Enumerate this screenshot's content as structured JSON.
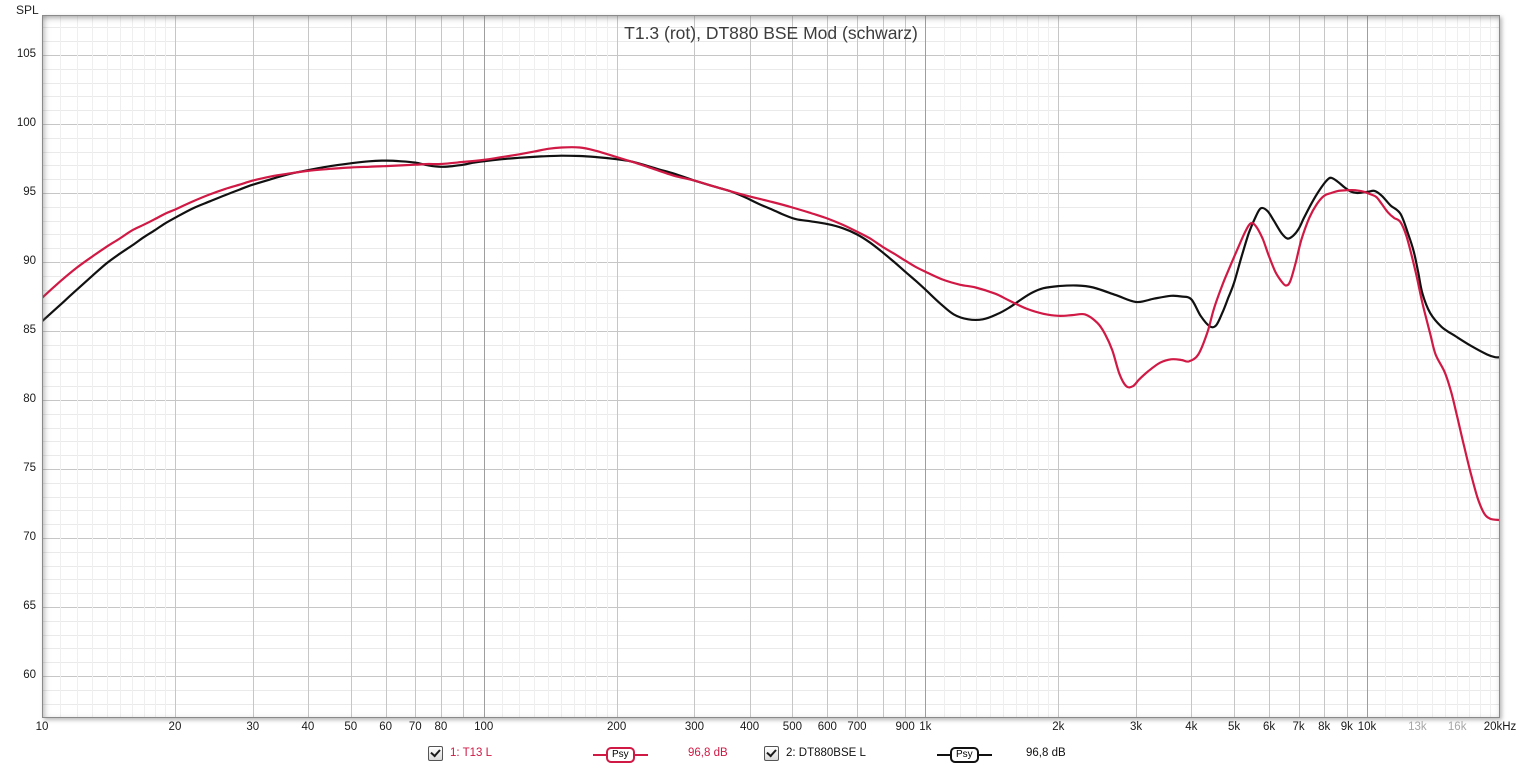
{
  "page": {
    "corner_label": "SPL"
  },
  "chart_data": {
    "type": "line",
    "title": "T1.3 (rot), DT880 BSE Mod (schwarz)",
    "x_axis": {
      "scale": "log",
      "min_hz": 10,
      "max_hz": 20000,
      "ticks": [
        {
          "f": 10,
          "label": "10"
        },
        {
          "f": 20,
          "label": "20"
        },
        {
          "f": 30,
          "label": "30"
        },
        {
          "f": 40,
          "label": "40"
        },
        {
          "f": 50,
          "label": "50"
        },
        {
          "f": 60,
          "label": "60"
        },
        {
          "f": 70,
          "label": "70"
        },
        {
          "f": 80,
          "label": "80"
        },
        {
          "f": 100,
          "label": "100"
        },
        {
          "f": 200,
          "label": "200"
        },
        {
          "f": 300,
          "label": "300"
        },
        {
          "f": 400,
          "label": "400"
        },
        {
          "f": 500,
          "label": "500"
        },
        {
          "f": 600,
          "label": "600"
        },
        {
          "f": 700,
          "label": "700"
        },
        {
          "f": 900,
          "label": "900"
        },
        {
          "f": 1000,
          "label": "1k"
        },
        {
          "f": 2000,
          "label": "2k"
        },
        {
          "f": 3000,
          "label": "3k"
        },
        {
          "f": 4000,
          "label": "4k"
        },
        {
          "f": 5000,
          "label": "5k"
        },
        {
          "f": 6000,
          "label": "6k"
        },
        {
          "f": 7000,
          "label": "7k"
        },
        {
          "f": 8000,
          "label": "8k"
        },
        {
          "f": 9000,
          "label": "9k"
        },
        {
          "f": 10000,
          "label": "10k"
        },
        {
          "f": 13000,
          "label": "13k",
          "muted": true
        },
        {
          "f": 16000,
          "label": "16k",
          "muted": true
        },
        {
          "f": 20000,
          "label": "20kHz"
        }
      ]
    },
    "y_axis": {
      "label": "SPL",
      "unit": "dB",
      "tick_values": [
        105,
        100,
        95,
        90,
        85,
        80,
        75,
        70,
        65,
        60
      ],
      "minor_step": 1,
      "major_step": 5,
      "ylim": [
        57,
        107.9
      ]
    },
    "grid": {
      "on": true
    },
    "legend_position": "bottom",
    "series": [
      {
        "name": "1: T13 L",
        "checked": true,
        "smoothing": "Psy",
        "level": "96,8 dB",
        "color": "#d01945",
        "points": [
          [
            10,
            87.4
          ],
          [
            11,
            88.6
          ],
          [
            12,
            89.6
          ],
          [
            13,
            90.4
          ],
          [
            14,
            91.1
          ],
          [
            15,
            91.7
          ],
          [
            16,
            92.3
          ],
          [
            17,
            92.7
          ],
          [
            18,
            93.1
          ],
          [
            19,
            93.5
          ],
          [
            20,
            93.8
          ],
          [
            22,
            94.4
          ],
          [
            24,
            94.9
          ],
          [
            26,
            95.3
          ],
          [
            28,
            95.6
          ],
          [
            30,
            95.9
          ],
          [
            33,
            96.2
          ],
          [
            36,
            96.4
          ],
          [
            40,
            96.6
          ],
          [
            45,
            96.75
          ],
          [
            50,
            96.85
          ],
          [
            55,
            96.9
          ],
          [
            60,
            96.95
          ],
          [
            65,
            97.0
          ],
          [
            70,
            97.05
          ],
          [
            75,
            97.1
          ],
          [
            80,
            97.1
          ],
          [
            90,
            97.25
          ],
          [
            100,
            97.4
          ],
          [
            110,
            97.6
          ],
          [
            120,
            97.8
          ],
          [
            130,
            98.0
          ],
          [
            140,
            98.2
          ],
          [
            150,
            98.3
          ],
          [
            165,
            98.3
          ],
          [
            180,
            98.05
          ],
          [
            200,
            97.6
          ],
          [
            215,
            97.3
          ],
          [
            230,
            97.0
          ],
          [
            250,
            96.6
          ],
          [
            270,
            96.25
          ],
          [
            300,
            95.9
          ],
          [
            330,
            95.5
          ],
          [
            360,
            95.15
          ],
          [
            400,
            94.75
          ],
          [
            450,
            94.35
          ],
          [
            500,
            93.95
          ],
          [
            550,
            93.55
          ],
          [
            600,
            93.15
          ],
          [
            650,
            92.7
          ],
          [
            700,
            92.2
          ],
          [
            750,
            91.7
          ],
          [
            800,
            91.1
          ],
          [
            850,
            90.6
          ],
          [
            900,
            90.1
          ],
          [
            950,
            89.65
          ],
          [
            1000,
            89.3
          ],
          [
            1100,
            88.7
          ],
          [
            1200,
            88.35
          ],
          [
            1300,
            88.15
          ],
          [
            1440,
            87.7
          ],
          [
            1550,
            87.2
          ],
          [
            1700,
            86.6
          ],
          [
            1850,
            86.25
          ],
          [
            2000,
            86.1
          ],
          [
            2150,
            86.15
          ],
          [
            2300,
            86.2
          ],
          [
            2450,
            85.6
          ],
          [
            2550,
            84.8
          ],
          [
            2650,
            83.6
          ],
          [
            2750,
            81.9
          ],
          [
            2850,
            81.0
          ],
          [
            2950,
            81.0
          ],
          [
            3050,
            81.5
          ],
          [
            3200,
            82.1
          ],
          [
            3400,
            82.7
          ],
          [
            3600,
            82.95
          ],
          [
            3800,
            82.9
          ],
          [
            3950,
            82.8
          ],
          [
            4150,
            83.3
          ],
          [
            4350,
            84.9
          ],
          [
            4500,
            86.6
          ],
          [
            4700,
            88.3
          ],
          [
            4900,
            89.7
          ],
          [
            5100,
            91.0
          ],
          [
            5300,
            92.2
          ],
          [
            5450,
            92.8
          ],
          [
            5600,
            92.6
          ],
          [
            5800,
            91.7
          ],
          [
            6000,
            90.4
          ],
          [
            6200,
            89.3
          ],
          [
            6400,
            88.6
          ],
          [
            6550,
            88.3
          ],
          [
            6700,
            88.6
          ],
          [
            6900,
            90.0
          ],
          [
            7100,
            91.6
          ],
          [
            7400,
            93.2
          ],
          [
            7700,
            94.2
          ],
          [
            8000,
            94.8
          ],
          [
            8300,
            95.0
          ],
          [
            8600,
            95.15
          ],
          [
            9000,
            95.2
          ],
          [
            9400,
            95.2
          ],
          [
            9800,
            95.1
          ],
          [
            10200,
            94.9
          ],
          [
            10500,
            94.7
          ],
          [
            10800,
            94.2
          ],
          [
            11150,
            93.6
          ],
          [
            11500,
            93.2
          ],
          [
            11900,
            92.9
          ],
          [
            12300,
            91.8
          ],
          [
            12900,
            89.2
          ],
          [
            13350,
            87.0
          ],
          [
            13900,
            84.8
          ],
          [
            14300,
            83.3
          ],
          [
            15000,
            82.0
          ],
          [
            15500,
            80.6
          ],
          [
            16000,
            78.8
          ],
          [
            16600,
            76.6
          ],
          [
            17200,
            74.6
          ],
          [
            17800,
            72.9
          ],
          [
            18400,
            71.8
          ],
          [
            19000,
            71.4
          ],
          [
            20000,
            71.3
          ]
        ]
      },
      {
        "name": "2: DT880BSE L",
        "checked": true,
        "smoothing": "Psy",
        "level": "96,8 dB",
        "color": "#111111",
        "points": [
          [
            10,
            85.7
          ],
          [
            11,
            86.9
          ],
          [
            12,
            88.0
          ],
          [
            13,
            89.0
          ],
          [
            14,
            89.9
          ],
          [
            15,
            90.6
          ],
          [
            16,
            91.2
          ],
          [
            17,
            91.8
          ],
          [
            18,
            92.3
          ],
          [
            19,
            92.8
          ],
          [
            20,
            93.2
          ],
          [
            22,
            93.9
          ],
          [
            24,
            94.4
          ],
          [
            26,
            94.85
          ],
          [
            28,
            95.25
          ],
          [
            30,
            95.6
          ],
          [
            33,
            96.0
          ],
          [
            36,
            96.35
          ],
          [
            40,
            96.65
          ],
          [
            45,
            96.95
          ],
          [
            50,
            97.15
          ],
          [
            55,
            97.3
          ],
          [
            60,
            97.35
          ],
          [
            65,
            97.3
          ],
          [
            70,
            97.2
          ],
          [
            75,
            97.0
          ],
          [
            80,
            96.9
          ],
          [
            85,
            96.95
          ],
          [
            90,
            97.05
          ],
          [
            95,
            97.2
          ],
          [
            100,
            97.3
          ],
          [
            110,
            97.45
          ],
          [
            120,
            97.55
          ],
          [
            135,
            97.65
          ],
          [
            150,
            97.7
          ],
          [
            165,
            97.68
          ],
          [
            180,
            97.6
          ],
          [
            200,
            97.45
          ],
          [
            215,
            97.3
          ],
          [
            230,
            97.05
          ],
          [
            250,
            96.7
          ],
          [
            270,
            96.4
          ],
          [
            300,
            95.9
          ],
          [
            330,
            95.5
          ],
          [
            360,
            95.15
          ],
          [
            390,
            94.7
          ],
          [
            420,
            94.2
          ],
          [
            450,
            93.8
          ],
          [
            480,
            93.4
          ],
          [
            510,
            93.1
          ],
          [
            550,
            92.95
          ],
          [
            600,
            92.75
          ],
          [
            650,
            92.45
          ],
          [
            700,
            92.0
          ],
          [
            750,
            91.4
          ],
          [
            800,
            90.7
          ],
          [
            850,
            90.0
          ],
          [
            900,
            89.3
          ],
          [
            950,
            88.65
          ],
          [
            1000,
            88.0
          ],
          [
            1080,
            87.0
          ],
          [
            1160,
            86.2
          ],
          [
            1250,
            85.85
          ],
          [
            1350,
            85.85
          ],
          [
            1450,
            86.2
          ],
          [
            1550,
            86.7
          ],
          [
            1650,
            87.3
          ],
          [
            1750,
            87.8
          ],
          [
            1850,
            88.1
          ],
          [
            2000,
            88.25
          ],
          [
            2200,
            88.3
          ],
          [
            2400,
            88.15
          ],
          [
            2700,
            87.6
          ],
          [
            3000,
            87.1
          ],
          [
            3300,
            87.35
          ],
          [
            3600,
            87.55
          ],
          [
            3800,
            87.5
          ],
          [
            4000,
            87.3
          ],
          [
            4200,
            86.1
          ],
          [
            4400,
            85.35
          ],
          [
            4550,
            85.4
          ],
          [
            4700,
            86.3
          ],
          [
            4850,
            87.4
          ],
          [
            5000,
            88.5
          ],
          [
            5200,
            90.4
          ],
          [
            5400,
            92.1
          ],
          [
            5600,
            93.3
          ],
          [
            5750,
            93.9
          ],
          [
            5950,
            93.7
          ],
          [
            6150,
            93.0
          ],
          [
            6400,
            92.1
          ],
          [
            6600,
            91.7
          ],
          [
            6800,
            91.9
          ],
          [
            7000,
            92.4
          ],
          [
            7200,
            93.2
          ],
          [
            7500,
            94.3
          ],
          [
            7800,
            95.2
          ],
          [
            8100,
            95.9
          ],
          [
            8300,
            96.1
          ],
          [
            8600,
            95.8
          ],
          [
            8900,
            95.4
          ],
          [
            9200,
            95.1
          ],
          [
            9500,
            95.0
          ],
          [
            9800,
            95.05
          ],
          [
            10100,
            95.1
          ],
          [
            10400,
            95.15
          ],
          [
            10800,
            94.8
          ],
          [
            11300,
            94.1
          ],
          [
            11900,
            93.5
          ],
          [
            12400,
            92.0
          ],
          [
            12750,
            90.8
          ],
          [
            13050,
            89.3
          ],
          [
            13350,
            87.7
          ],
          [
            13900,
            86.3
          ],
          [
            14750,
            85.3
          ],
          [
            15900,
            84.6
          ],
          [
            17250,
            83.9
          ],
          [
            18700,
            83.3
          ],
          [
            19500,
            83.1
          ],
          [
            20000,
            83.1
          ]
        ]
      }
    ]
  }
}
